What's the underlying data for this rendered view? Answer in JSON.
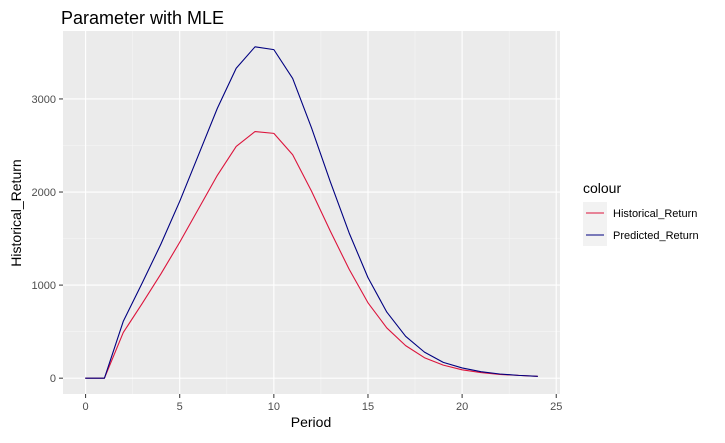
{
  "chart_data": {
    "type": "line",
    "title": "Parameter with MLE",
    "xlabel": "Period",
    "ylabel": "Historical_Return",
    "xlim": [
      -1.2,
      25.2
    ],
    "ylim": [
      -170,
      3730
    ],
    "x_ticks": [
      0,
      5,
      10,
      15,
      20,
      25
    ],
    "y_ticks": [
      0,
      1000,
      2000,
      3000
    ],
    "grid": true,
    "legend": {
      "title": "colour",
      "placement": "right"
    },
    "x": [
      0,
      1,
      2,
      3,
      4,
      5,
      6,
      7,
      8,
      9,
      10,
      11,
      12,
      13,
      14,
      15,
      16,
      17,
      18,
      19,
      20,
      21,
      22,
      23,
      24
    ],
    "series": [
      {
        "name": "Historical_Return",
        "color": "#dc143c",
        "values": [
          0,
          0,
          490,
          800,
          1120,
          1460,
          1820,
          2180,
          2490,
          2650,
          2630,
          2400,
          2010,
          1580,
          1170,
          810,
          540,
          350,
          220,
          140,
          90,
          60,
          40,
          30,
          20
        ]
      },
      {
        "name": "Predicted_Return",
        "color": "#000080",
        "values": [
          0,
          0,
          610,
          1020,
          1440,
          1900,
          2400,
          2900,
          3330,
          3560,
          3530,
          3220,
          2690,
          2110,
          1560,
          1080,
          710,
          450,
          280,
          170,
          110,
          70,
          45,
          30,
          20
        ]
      }
    ]
  }
}
